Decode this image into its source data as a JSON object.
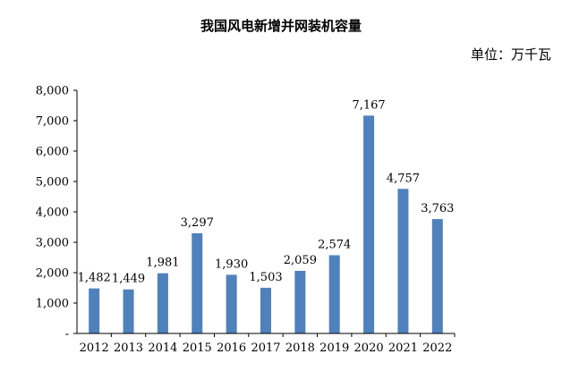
{
  "chart_data": {
    "type": "bar",
    "title": "我国风电新增并网装机容量",
    "unit_label": "单位：万千瓦",
    "categories": [
      "2012",
      "2013",
      "2014",
      "2015",
      "2016",
      "2017",
      "2018",
      "2019",
      "2020",
      "2021",
      "2022"
    ],
    "values": [
      1482,
      1449,
      1981,
      3297,
      1930,
      1503,
      2059,
      2574,
      7167,
      4757,
      3763
    ],
    "value_labels": [
      "1,482",
      "1,449",
      "1,981",
      "3,297",
      "1,930",
      "1,503",
      "2,059",
      "2,574",
      "7,167",
      "4,757",
      "3,763"
    ],
    "y_ticks": [
      "-",
      "1,000",
      "2,000",
      "3,000",
      "4,000",
      "5,000",
      "6,000",
      "7,000",
      "8,000"
    ],
    "ylim": [
      0,
      8000
    ],
    "grid": false,
    "bar_color": "#4F81BD"
  }
}
